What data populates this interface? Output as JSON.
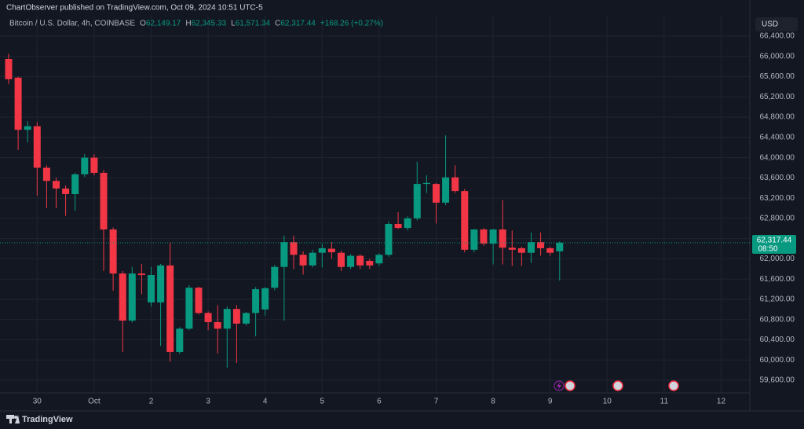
{
  "header": {
    "title": "ChartObserver published on TradingView.com, Oct 09, 2024 10:51 UTC-5"
  },
  "footer": {
    "brand": "TradingView"
  },
  "chart_data": {
    "type": "candlestick",
    "symbol": "Bitcoin / U.S. Dollar, 4h, COINBASE",
    "ohlc_legend": {
      "o_label": "O",
      "o": "62,149.17",
      "h_label": "H",
      "h": "62,345.33",
      "l_label": "L",
      "l": "61,571.34",
      "c_label": "C",
      "c": "62,317.44",
      "change": "+168.26 (+0.27%)"
    },
    "currency": "USD",
    "last_price": 62317.44,
    "last_price_label": "62,317.44",
    "countdown": "08:50",
    "up_color": "#089981",
    "down_color": "#f23645",
    "x": [
      0,
      1,
      2,
      3,
      4,
      5,
      6,
      7,
      8,
      9,
      10,
      11,
      12,
      13,
      14,
      15,
      16,
      17,
      18,
      19,
      20,
      21,
      22,
      23,
      24,
      25,
      26,
      27,
      28,
      29,
      30,
      31,
      32,
      33,
      34,
      35,
      36,
      37,
      38,
      39,
      40,
      41,
      42,
      43,
      44,
      45,
      46,
      47,
      48,
      49,
      50,
      51,
      52,
      53,
      54,
      55,
      56,
      57,
      58
    ],
    "open": [
      65950,
      65580,
      64550,
      64620,
      63800,
      63540,
      63390,
      63280,
      63670,
      64000,
      63700,
      62580,
      61710,
      60780,
      61710,
      61140,
      61140,
      61870,
      60160,
      60620,
      61430,
      60930,
      60750,
      60620,
      61010,
      60720,
      60930,
      61000,
      61430,
      61840,
      62330,
      62080,
      61870,
      62120,
      62200,
      62120,
      61840,
      62060,
      61960,
      61910,
      62080,
      62690,
      62610,
      62800,
      63480,
      63480,
      63110,
      63610,
      63340,
      62180,
      62580,
      62300,
      62580,
      62220,
      62210,
      62120,
      62330,
      62210,
      62149.17
    ],
    "high": [
      66050,
      65600,
      64720,
      64700,
      63850,
      63600,
      63450,
      63700,
      64070,
      64070,
      63750,
      62620,
      61760,
      61840,
      61900,
      61840,
      61900,
      62330,
      60650,
      61480,
      61450,
      60960,
      61090,
      61060,
      61090,
      60950,
      61440,
      61440,
      61880,
      62460,
      62460,
      62150,
      62180,
      62300,
      62330,
      62160,
      62090,
      62090,
      62000,
      62110,
      62740,
      62920,
      62840,
      63920,
      63650,
      63500,
      64440,
      63850,
      63380,
      62590,
      62610,
      62590,
      63160,
      62560,
      62240,
      62520,
      62520,
      62240,
      62345.33
    ],
    "low": [
      65450,
      64150,
      64300,
      63250,
      63000,
      63000,
      62850,
      62950,
      63620,
      63650,
      61760,
      61370,
      60160,
      60740,
      61300,
      61060,
      60280,
      59970,
      60120,
      60590,
      60900,
      60590,
      60130,
      59850,
      59940,
      60680,
      60470,
      60880,
      61380,
      60780,
      61800,
      61690,
      61830,
      61830,
      62000,
      61760,
      61800,
      61800,
      61800,
      61860,
      62040,
      62590,
      62560,
      62760,
      63300,
      62700,
      63060,
      63300,
      62130,
      62130,
      62260,
      61890,
      61890,
      61860,
      61860,
      61920,
      62060,
      62060,
      61571.34
    ],
    "close": [
      65550,
      64550,
      64620,
      63800,
      63540,
      63390,
      63280,
      63670,
      64000,
      63700,
      62580,
      61710,
      60780,
      61710,
      61680,
      61680,
      61870,
      60160,
      60620,
      61430,
      60930,
      60750,
      60620,
      61010,
      60720,
      60930,
      61400,
      61420,
      61840,
      62330,
      62080,
      61870,
      62120,
      62210,
      62130,
      61840,
      62060,
      61870,
      61870,
      62080,
      62690,
      62610,
      62800,
      63480,
      63500,
      63110,
      63610,
      63340,
      62180,
      62580,
      62300,
      62580,
      62220,
      62180,
      62120,
      62330,
      62210,
      62120,
      62317.44
    ],
    "xlim": [
      -0.91,
      78.02
    ],
    "xticks": [
      {
        "value": 3,
        "label": "30"
      },
      {
        "value": 9,
        "label": "Oct"
      },
      {
        "value": 15,
        "label": "2"
      },
      {
        "value": 21,
        "label": "3"
      },
      {
        "value": 27,
        "label": "4"
      },
      {
        "value": 33,
        "label": "5"
      },
      {
        "value": 39,
        "label": "6"
      },
      {
        "value": 45,
        "label": "7"
      },
      {
        "value": 51,
        "label": "8"
      },
      {
        "value": 57,
        "label": "9"
      },
      {
        "value": 63,
        "label": "10"
      },
      {
        "value": 69,
        "label": "11"
      },
      {
        "value": 75,
        "label": "12"
      }
    ],
    "ylim": [
      59352,
      66804
    ],
    "yticks": [
      {
        "value": 59600,
        "label": "59,600.00"
      },
      {
        "value": 60000,
        "label": "60,000.00"
      },
      {
        "value": 60400,
        "label": "60,400.00"
      },
      {
        "value": 60800,
        "label": "60,800.00"
      },
      {
        "value": 61200,
        "label": "61,200.00"
      },
      {
        "value": 61600,
        "label": "61,600.00"
      },
      {
        "value": 62000,
        "label": "62,000.00"
      },
      {
        "value": 62400,
        "label": "62,400.00"
      },
      {
        "value": 62800,
        "label": "62,800.00"
      },
      {
        "value": 63200,
        "label": "63,200.00"
      },
      {
        "value": 63600,
        "label": "63,600.00"
      },
      {
        "value": 64000,
        "label": "64,000.00"
      },
      {
        "value": 64400,
        "label": "64,400.00"
      },
      {
        "value": 64800,
        "label": "64,800.00"
      },
      {
        "value": 65200,
        "label": "65,200.00"
      },
      {
        "value": 65600,
        "label": "65,600.00"
      },
      {
        "value": 66000,
        "label": "66,000.00"
      },
      {
        "value": 66400,
        "label": "66,400.00"
      }
    ],
    "grid": true
  }
}
